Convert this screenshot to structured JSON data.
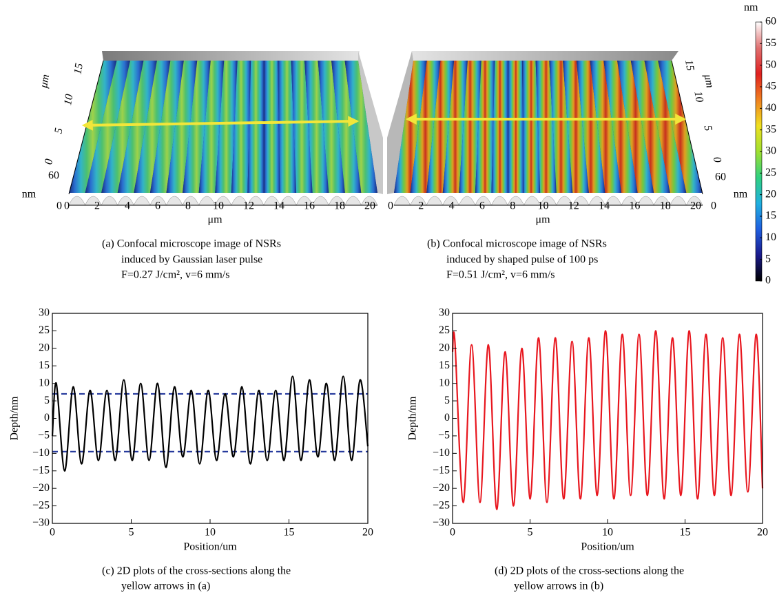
{
  "panels": [
    {
      "caption": [
        "(a) Confocal microscope image of NSRs",
        "induced by Gaussian laser pulse",
        "F=0.27 J/cm², v=6 mm/s"
      ],
      "x_label": "μm",
      "x_ticks": [
        0,
        2,
        4,
        6,
        8,
        10,
        12,
        14,
        16,
        18,
        20
      ],
      "y_label": "μm",
      "y_ticks": [
        0,
        5,
        10,
        15
      ],
      "z_label": "nm",
      "z_ticks": [
        0,
        60
      ],
      "colors": [
        "#16287a",
        "#2a6fd0",
        "#32b4c8",
        "#4cc070",
        "#9ed24a",
        "#4cc070",
        "#32b4c8",
        "#2a6fd0",
        "#16287a"
      ]
    },
    {
      "caption": [
        "(b) Confocal microscope image of NSRs",
        "induced by shaped pulse of 100 ps",
        "F=0.51 J/cm², v=6 mm/s"
      ],
      "x_label": "μm",
      "x_ticks": [
        0,
        2,
        4,
        6,
        8,
        10,
        12,
        14,
        16,
        18,
        20
      ],
      "y_label": "μm",
      "y_ticks": [
        0,
        5,
        10,
        15
      ],
      "z_label": "nm",
      "z_ticks": [
        0,
        60
      ],
      "colors": [
        "#16287a",
        "#2a6fd0",
        "#32b4c8",
        "#70c840",
        "#e0a020",
        "#c8301e",
        "#e0a020",
        "#70c840",
        "#32b4c8",
        "#2a6fd0",
        "#16287a"
      ]
    }
  ],
  "colorbar": {
    "unit": "nm",
    "lim": [
      0,
      60
    ],
    "ticks": [
      0,
      5,
      10,
      15,
      20,
      25,
      30,
      35,
      40,
      45,
      50,
      55,
      60
    ],
    "colors": [
      "#000000",
      "#1a1a8c",
      "#1f5fe0",
      "#20b0e0",
      "#30d080",
      "#a0e030",
      "#f0e020",
      "#f08020",
      "#e02020",
      "#e07070",
      "#ffffff"
    ]
  },
  "chart_data": [
    {
      "type": "line",
      "x_label": "Position/um",
      "y_label": "Depth/nm",
      "caption": [
        "(c) 2D plots of the cross-sections along the",
        "yellow arrows in (a)"
      ],
      "xlim": [
        0,
        20
      ],
      "ylim": [
        -30,
        30
      ],
      "xticks": [
        0,
        5,
        10,
        15,
        20
      ],
      "yticks": [
        {
          "value": -30,
          "label": "−30"
        },
        {
          "value": -25,
          "label": "−25"
        },
        {
          "value": -20,
          "label": "−20"
        },
        {
          "value": -15,
          "label": "−15"
        },
        {
          "value": -10,
          "label": "−10"
        },
        {
          "value": -5,
          "label": "−5"
        },
        0,
        5,
        10,
        15,
        20,
        25,
        30
      ],
      "x": [
        0,
        0.25,
        0.78,
        1.32,
        1.85,
        2.39,
        2.92,
        3.46,
        3.99,
        4.53,
        5.06,
        5.6,
        6.13,
        6.67,
        7.2,
        7.74,
        8.27,
        8.81,
        9.34,
        9.88,
        10.41,
        10.95,
        11.48,
        12.02,
        12.55,
        13.09,
        13.62,
        14.16,
        14.69,
        15.23,
        15.76,
        16.3,
        16.83,
        17.37,
        17.9,
        18.44,
        18.97,
        19.51,
        20
      ],
      "series": [
        {
          "color": "#000000",
          "values": [
            -5,
            10,
            -15,
            9,
            -13,
            8,
            -12,
            8,
            -12,
            11,
            -12,
            10,
            -12,
            10,
            -14,
            9,
            -11,
            8,
            -13,
            8,
            -12,
            7,
            -11,
            9,
            -13,
            8,
            -12,
            8,
            -12,
            12,
            -12,
            11,
            -11,
            10,
            -12,
            12,
            -12,
            11,
            -8
          ]
        }
      ],
      "hlines": [
        7,
        -9.5
      ],
      "hline_color": "#24389c"
    },
    {
      "type": "line",
      "x_label": "Position/um",
      "y_label": "Depth/nm",
      "caption": [
        "(d) 2D plots of the cross-sections along the",
        "yellow arrows in (b)"
      ],
      "xlim": [
        0,
        20
      ],
      "ylim": [
        -30,
        30
      ],
      "xticks": [
        0,
        5,
        10,
        15,
        20
      ],
      "yticks": [
        {
          "value": -30,
          "label": "−30"
        },
        {
          "value": -25,
          "label": "−25"
        },
        {
          "value": -20,
          "label": "−20"
        },
        {
          "value": -15,
          "label": "−15"
        },
        {
          "value": -10,
          "label": "−10"
        },
        {
          "value": -5,
          "label": "−5"
        },
        0,
        5,
        10,
        15,
        20,
        25,
        30
      ],
      "x": [
        0,
        0.15,
        0.69,
        1.23,
        1.77,
        2.31,
        2.85,
        3.39,
        3.93,
        4.47,
        5.01,
        5.55,
        6.09,
        6.63,
        7.17,
        7.71,
        8.25,
        8.79,
        9.33,
        9.87,
        10.41,
        10.95,
        11.49,
        12.03,
        12.57,
        13.11,
        13.65,
        14.19,
        14.73,
        15.27,
        15.81,
        16.35,
        16.89,
        17.43,
        17.97,
        18.51,
        19.05,
        19.59,
        20
      ],
      "series": [
        {
          "color": "#e8161e",
          "values": [
            19,
            22,
            -24,
            21,
            -24,
            21,
            -26,
            19,
            -25,
            20,
            -23,
            23,
            -24,
            23,
            -23,
            22,
            -23,
            23,
            -22,
            25,
            -23,
            24,
            -22,
            24,
            -22,
            25,
            -23,
            23,
            -22,
            25,
            -23,
            24,
            -22,
            23,
            -22,
            24,
            -21,
            24,
            -20
          ]
        }
      ]
    }
  ]
}
